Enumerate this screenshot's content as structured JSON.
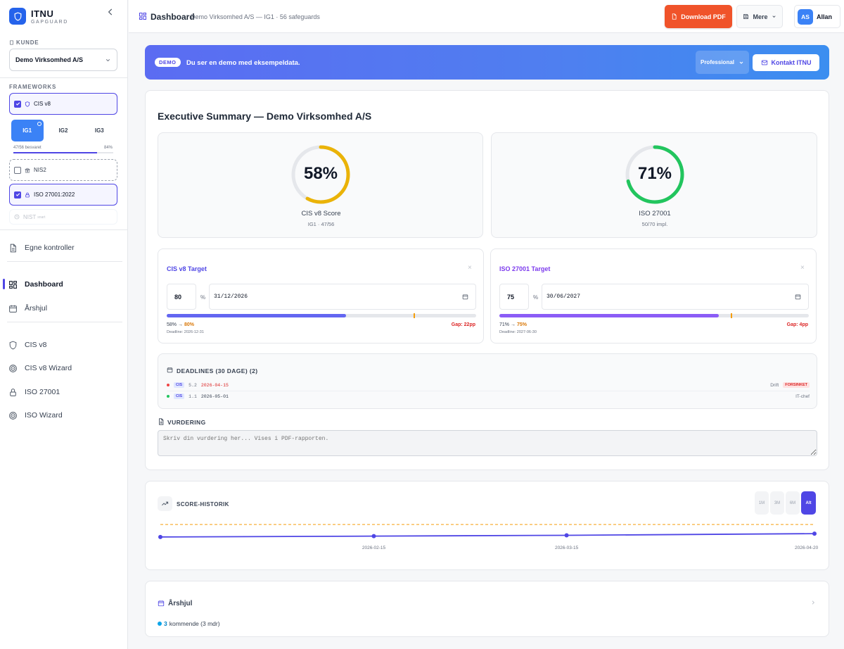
{
  "brand": {
    "name": "ITNU",
    "sub": "GAPGUARD"
  },
  "sidebar": {
    "kunde_label": "KUNDE",
    "kunde_value": "Demo Virksomhed A/S",
    "frameworks_label": "FRAMEWORKS",
    "frameworks": [
      {
        "label": "CIS v8",
        "checked": true
      },
      {
        "label": "NIS2",
        "checked": false
      },
      {
        "label": "ISO 27001:2022",
        "checked": true
      },
      {
        "label": "NIST",
        "badge": "snart",
        "checked": false
      }
    ],
    "ig_tabs": [
      "IG1",
      "IG2",
      "IG3"
    ],
    "progress_text": "47/56 besvaret",
    "progress_pct": "84%",
    "progress_value": 0.84,
    "nav": [
      {
        "label": "Egne kontroller",
        "icon": "document-icon"
      },
      {
        "label": "Dashboard",
        "icon": "grid-icon"
      },
      {
        "label": "Årshjul",
        "icon": "calendar-icon"
      },
      {
        "label": "CIS v8",
        "icon": "shield-icon"
      },
      {
        "label": "CIS v8 Wizard",
        "icon": "target-icon"
      },
      {
        "label": "ISO 27001",
        "icon": "lock-icon"
      },
      {
        "label": "ISO Wizard",
        "icon": "target-icon"
      }
    ]
  },
  "header": {
    "title": "Dashboard",
    "subtitle": "Demo Virksomhed A/S — IG1 · 56 safeguards",
    "download_label": "Download PDF",
    "more_label": "Mere",
    "user_initials": "AS",
    "user_name": "Allan"
  },
  "banner": {
    "badge": "DEMO",
    "text": "Du ser en demo med eksempeldata.",
    "plan": "Professional",
    "contact_label": "Kontakt ITNU"
  },
  "summary": {
    "title": "Executive Summary — Demo Virksomhed A/S",
    "gauges": [
      {
        "value": "58%",
        "fraction": 0.58,
        "label": "CIS v8 Score",
        "sub": "IG1 · 47/56",
        "color": "#eab308"
      },
      {
        "value": "71%",
        "fraction": 0.71,
        "label": "ISO 27001",
        "sub": "50/70 impl.",
        "color": "#22c55e"
      }
    ],
    "targets": [
      {
        "title": "CIS v8 Target",
        "pct_value": "80",
        "pct_unit": "%",
        "date": "31/12/2026",
        "current": 0.58,
        "target": 0.8,
        "from": "58%",
        "arrow": "→",
        "to": "80%",
        "deadline": "Deadline: 2026-12-31",
        "gap": "Gap: 22pp",
        "bar_color": "#6366f1",
        "close": "×"
      },
      {
        "title": "ISO 27001 Target",
        "pct_value": "75",
        "pct_unit": "%",
        "date": "30/06/2027",
        "current": 0.71,
        "target": 0.75,
        "from": "71%",
        "arrow": "→",
        "to": "75%",
        "deadline": "Deadline: 2027-06-30",
        "gap": "Gap: 4pp",
        "bar_color": "#8b5cf6",
        "close": "×"
      }
    ],
    "deadlines": {
      "title": "DEADLINES (30 DAGE) (2)",
      "rows": [
        {
          "tag": "CIS",
          "code": "5.2",
          "date": "2026-04-15",
          "owner": "Drift",
          "status": "FORSINKET",
          "dot": "#ef4444",
          "date_color": "#dc2626"
        },
        {
          "tag": "CIS",
          "code": "1.1",
          "date": "2026-05-01",
          "owner": "IT-chef",
          "status": "",
          "dot": "#22c55e",
          "date_color": "#374151"
        }
      ]
    },
    "vurdering": {
      "title": "VURDERING",
      "placeholder": "Skriv din vurdering her... Vises i PDF-rapporten."
    }
  },
  "history": {
    "title": "SCORE-HISTORIK",
    "ranges": [
      "1M",
      "3M",
      "6M",
      "Alt"
    ],
    "active_range": "Alt"
  },
  "chart_data": {
    "type": "line",
    "x": [
      "2026-01-15",
      "2026-02-15",
      "2026-03-15",
      "2026-04-20"
    ],
    "series": [
      {
        "values": [
          50,
          52,
          54,
          58
        ],
        "color": "#4f46e5"
      }
    ],
    "target_line": {
      "value": 80,
      "color": "#f59e0b"
    },
    "tick_labels": [
      "2026-02-15",
      "2026-03-15",
      "2026-04-20"
    ],
    "ylim": [
      0,
      100
    ],
    "grid": false
  },
  "aarshjul": {
    "title": "Årshjul",
    "count": "3",
    "count_text": "kommende (3 mdr)"
  }
}
